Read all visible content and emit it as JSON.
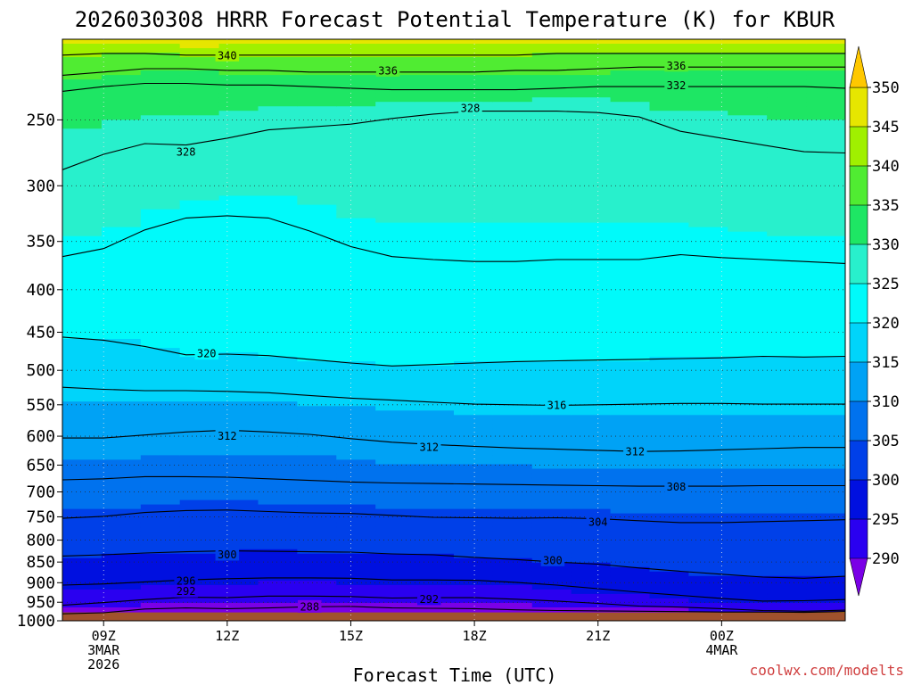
{
  "chart_data": {
    "type": "heatmap",
    "title": "2026030308 HRRR Forecast Potential Temperature (K) for KBUR",
    "xlabel": "Forecast Time (UTC)",
    "ylabel": "",
    "y_axis": "pressure",
    "y_scale": "log",
    "y_range": [
      1000,
      200
    ],
    "y_ticks": [
      "250",
      "300",
      "350",
      "400",
      "450",
      "500",
      "550",
      "600",
      "650",
      "700",
      "750",
      "800",
      "850",
      "900",
      "950",
      "1000"
    ],
    "x_range_hours": [
      8,
      27
    ],
    "x_ticks": [
      {
        "hour": 9,
        "lines": [
          "09Z",
          "3MAR",
          "2026"
        ]
      },
      {
        "hour": 12,
        "lines": [
          "12Z"
        ]
      },
      {
        "hour": 15,
        "lines": [
          "15Z"
        ]
      },
      {
        "hour": 18,
        "lines": [
          "18Z"
        ]
      },
      {
        "hour": 21,
        "lines": [
          "21Z"
        ]
      },
      {
        "hour": 24,
        "lines": [
          "00Z",
          "4MAR"
        ]
      }
    ],
    "colorbar": {
      "labels": [
        "350",
        "345",
        "340",
        "335",
        "330",
        "325",
        "320",
        "315",
        "310",
        "305",
        "300",
        "295",
        "290"
      ],
      "levels": [
        285,
        290,
        295,
        300,
        305,
        310,
        315,
        320,
        325,
        330,
        335,
        340,
        345,
        350,
        355
      ],
      "colors": [
        "#7a00e6",
        "#2a00f0",
        "#0010e0",
        "#0040e8",
        "#0072ee",
        "#00a2f5",
        "#00d4fa",
        "#00fafa",
        "#28f0cc",
        "#1ee664",
        "#50ec32",
        "#a0f000",
        "#e6e600",
        "#ffc800"
      ]
    },
    "terrain_color": "#a0522d",
    "surface_pressure": 977,
    "contour_labels": [
      {
        "text": "340",
        "x_hour": 12.0,
        "p": 209
      },
      {
        "text": "336",
        "x_hour": 15.9,
        "p": 218
      },
      {
        "text": "336",
        "x_hour": 22.9,
        "p": 215
      },
      {
        "text": "332",
        "x_hour": 22.9,
        "p": 227
      },
      {
        "text": "328",
        "x_hour": 17.9,
        "p": 242
      },
      {
        "text": "328",
        "x_hour": 11.0,
        "p": 273
      },
      {
        "text": "320",
        "x_hour": 11.5,
        "p": 477
      },
      {
        "text": "316",
        "x_hour": 20.0,
        "p": 550
      },
      {
        "text": "312",
        "x_hour": 12.0,
        "p": 599
      },
      {
        "text": "312",
        "x_hour": 16.9,
        "p": 618
      },
      {
        "text": "312",
        "x_hour": 21.9,
        "p": 626
      },
      {
        "text": "308",
        "x_hour": 22.9,
        "p": 690
      },
      {
        "text": "304",
        "x_hour": 21.0,
        "p": 760
      },
      {
        "text": "300",
        "x_hour": 12.0,
        "p": 832
      },
      {
        "text": "300",
        "x_hour": 19.9,
        "p": 845
      },
      {
        "text": "296",
        "x_hour": 11.0,
        "p": 895
      },
      {
        "text": "292",
        "x_hour": 11.0,
        "p": 921
      },
      {
        "text": "292",
        "x_hour": 16.9,
        "p": 941
      },
      {
        "text": "288",
        "x_hour": 14.0,
        "p": 961
      }
    ],
    "series": [
      {
        "theta": 288,
        "values": [
          981,
          978,
          968,
          965,
          967,
          965,
          962,
          961,
          965,
          966,
          967,
          970,
          972,
          973,
          974,
          975,
          976,
          976,
          977,
          975
        ]
      },
      {
        "theta": 292,
        "values": [
          958,
          951,
          943,
          937,
          938,
          934,
          934,
          935,
          939,
          938,
          938,
          942,
          947,
          953,
          960,
          963,
          967,
          972,
          974,
          971
        ]
      },
      {
        "theta": 296,
        "values": [
          906,
          903,
          898,
          893,
          890,
          888,
          888,
          889,
          893,
          893,
          894,
          899,
          906,
          915,
          924,
          932,
          940,
          947,
          946,
          943
        ]
      },
      {
        "theta": 300,
        "values": [
          836,
          833,
          829,
          826,
          824,
          825,
          826,
          827,
          831,
          833,
          839,
          844,
          850,
          855,
          864,
          872,
          879,
          886,
          889,
          884
        ]
      },
      {
        "theta": 304,
        "values": [
          753,
          749,
          741,
          737,
          736,
          739,
          742,
          743,
          747,
          751,
          752,
          753,
          752,
          754,
          758,
          762,
          762,
          760,
          758,
          756
        ]
      },
      {
        "theta": 308,
        "values": [
          677,
          675,
          671,
          671,
          672,
          675,
          678,
          681,
          683,
          684,
          685,
          686,
          687,
          688,
          689,
          689,
          689,
          688,
          688,
          688
        ]
      },
      {
        "theta": 312,
        "values": [
          603,
          603,
          598,
          593,
          590,
          593,
          597,
          604,
          610,
          614,
          617,
          620,
          622,
          624,
          626,
          625,
          623,
          621,
          619,
          619
        ]
      },
      {
        "theta": 316,
        "values": [
          524,
          527,
          529,
          529,
          530,
          532,
          536,
          540,
          543,
          546,
          549,
          550,
          551,
          550,
          549,
          548,
          548,
          549,
          549,
          549
        ]
      },
      {
        "theta": 320,
        "values": [
          456,
          460,
          468,
          479,
          478,
          480,
          485,
          490,
          494,
          492,
          490,
          488,
          487,
          486,
          485,
          484,
          483,
          481,
          482,
          481
        ]
      },
      {
        "theta": 324,
        "values": [
          365,
          357,
          339,
          328,
          326,
          328,
          340,
          355,
          365,
          368,
          370,
          370,
          368,
          368,
          368,
          363,
          366,
          368,
          370,
          372
        ]
      },
      {
        "theta": 328,
        "values": [
          287,
          275,
          267,
          268,
          263,
          257,
          255,
          253,
          249,
          246,
          244,
          244,
          244,
          245,
          248,
          258,
          263,
          268,
          273,
          274
        ]
      },
      {
        "theta": 332,
        "values": [
          231,
          228,
          226,
          226,
          227,
          227,
          228,
          229,
          230,
          230,
          230,
          230,
          229,
          228,
          228,
          228,
          228,
          228,
          228,
          229
        ]
      },
      {
        "theta": 336,
        "values": [
          221,
          219,
          217,
          217,
          218,
          218,
          219,
          219,
          219,
          219,
          219,
          218,
          218,
          217,
          216,
          216,
          216,
          216,
          216,
          216
        ]
      },
      {
        "theta": 340,
        "values": [
          209,
          208,
          208,
          209,
          209,
          209,
          209,
          209,
          209,
          209,
          209,
          209,
          208,
          208,
          208,
          208,
          208,
          208,
          208,
          208
        ]
      }
    ]
  },
  "credit": "coolwx.com/modelts"
}
